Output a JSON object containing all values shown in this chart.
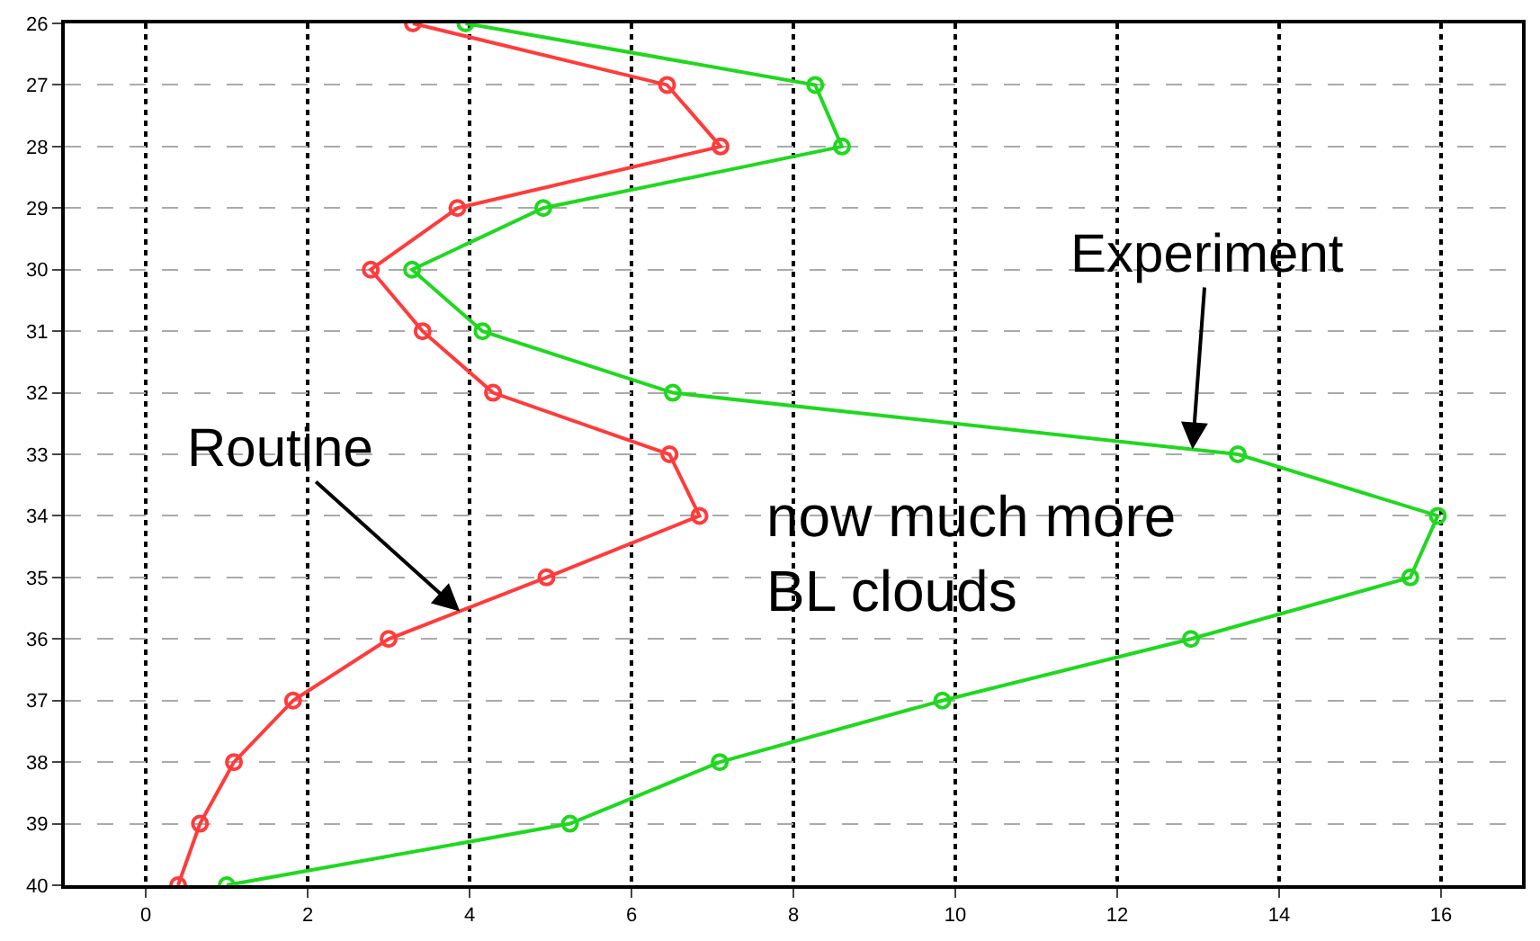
{
  "chart_data": {
    "type": "line",
    "series": [
      {
        "color": "#ff3b3b",
        "x": [
          3.3,
          6.44,
          7.1,
          3.85,
          2.78,
          3.42,
          4.29,
          6.47,
          6.84,
          4.95,
          3.0,
          1.82,
          1.09,
          0.67,
          0.4
        ],
        "values": [
          26,
          27,
          28,
          29,
          30,
          31,
          32,
          33,
          34,
          35,
          36,
          37,
          38,
          39,
          40
        ]
      },
      {
        "color": "#1fd81f",
        "x": [
          3.95,
          8.27,
          8.6,
          4.91,
          3.29,
          4.16,
          6.51,
          13.49,
          15.96,
          15.62,
          12.91,
          9.84,
          7.09,
          5.24,
          1.0
        ],
        "values": [
          26,
          27,
          28,
          29,
          30,
          31,
          32,
          33,
          34,
          35,
          36,
          37,
          38,
          39,
          40
        ]
      }
    ],
    "annotations": [
      {
        "text": "Routine",
        "x": 3.88,
        "y": 35.55
      },
      {
        "text": "Experiment",
        "x": 12.93,
        "y": 32.92
      },
      "now much more\nBL clouds"
    ],
    "xlim": [
      -1,
      17
    ],
    "xticks": [
      0,
      2,
      4,
      6,
      8,
      10,
      12,
      14,
      16
    ],
    "ylim": [
      40,
      26
    ],
    "yticks": [
      26,
      27,
      28,
      29,
      30,
      31,
      32,
      33,
      34,
      35,
      36,
      37,
      38,
      39,
      40
    ],
    "grid": true,
    "marker": "circle",
    "line_style": "solid"
  }
}
